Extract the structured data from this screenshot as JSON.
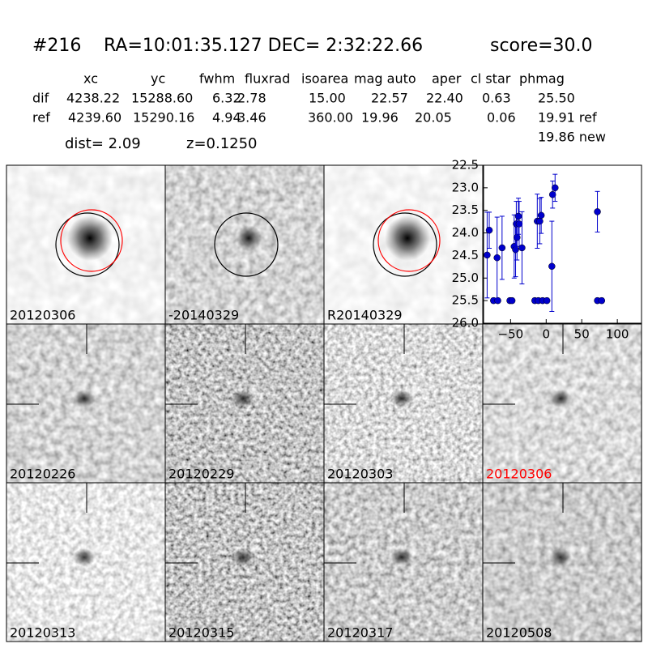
{
  "header": {
    "id": "#216",
    "coords": "RA=10:01:35.127 DEC= 2:32:22.66",
    "score": "score=30.0"
  },
  "table": {
    "columns": [
      "xc",
      "yc",
      "fwhm",
      "fluxrad",
      "isoarea",
      "mag auto",
      "aper",
      "cl star",
      "phmag"
    ],
    "rows": [
      {
        "label": "dif",
        "cells": [
          "4238.22",
          "15288.60",
          "6.32",
          "2.78",
          "15.00",
          "22.57",
          "22.40",
          "0.63",
          "25.50"
        ]
      },
      {
        "label": "ref",
        "cells": [
          "4239.60",
          "15290.16",
          "4.94",
          "3.46",
          "360.00",
          "19.96",
          "20.05",
          "0.06",
          "19.91 ref"
        ]
      }
    ],
    "extra": "19.86 new"
  },
  "dist": "dist=  2.09",
  "redshift": "z=0.1250",
  "tiles": [
    {
      "label": "20120306"
    },
    {
      "label": "-20140329"
    },
    {
      "label": "R20140329"
    },
    {
      "label": "20120226"
    },
    {
      "label": "20120229"
    },
    {
      "label": "20120303"
    },
    {
      "label": "20120306",
      "color": "#ff0000"
    },
    {
      "label": "20120313"
    },
    {
      "label": "20120315"
    },
    {
      "label": "20120317"
    },
    {
      "label": "20120508"
    }
  ],
  "chart_data": {
    "type": "errorbar",
    "xlim": [
      -88,
      134
    ],
    "ylim": [
      26.0,
      22.5
    ],
    "xticks": [
      {
        "value": -50,
        "label": "−50"
      },
      0,
      50,
      100
    ],
    "yticks": [
      22.5,
      {
        "value": 23,
        "label": "23.0"
      },
      23.5,
      {
        "value": 24,
        "label": "24.0"
      },
      24.5,
      {
        "value": 25,
        "label": "25.0"
      },
      25.5,
      {
        "value": 26,
        "label": "26.0"
      }
    ],
    "series": [
      {
        "color": "#0000cc",
        "x": [
          -83,
          -80,
          -74,
          -68,
          -69,
          -62,
          -51,
          -48,
          -45,
          -43,
          -42,
          -41,
          -38,
          -39,
          -34,
          -16,
          -11,
          -5,
          1,
          -12.5,
          -9,
          -7,
          8,
          9,
          12.5,
          72,
          72,
          78
        ],
        "values": [
          24.49,
          23.94,
          25.5,
          25.5,
          24.55,
          24.33,
          25.5,
          25.5,
          24.3,
          24.37,
          23.8,
          24.1,
          23.8,
          23.63,
          24.33,
          25.5,
          25.5,
          25.5,
          25.5,
          23.74,
          23.74,
          23.61,
          24.74,
          23.15,
          23.0,
          23.53,
          25.5,
          25.5
        ],
        "errors": [
          0.95,
          0.4,
          0.05,
          0.05,
          0.9,
          0.7,
          0.05,
          0.05,
          0.7,
          0.6,
          0.5,
          0.5,
          0.5,
          0.4,
          0.8,
          0.05,
          0.05,
          0.05,
          0.05,
          0.6,
          0.5,
          0.4,
          1.0,
          0.3,
          0.3,
          0.45,
          0.05,
          0.05
        ]
      }
    ]
  }
}
